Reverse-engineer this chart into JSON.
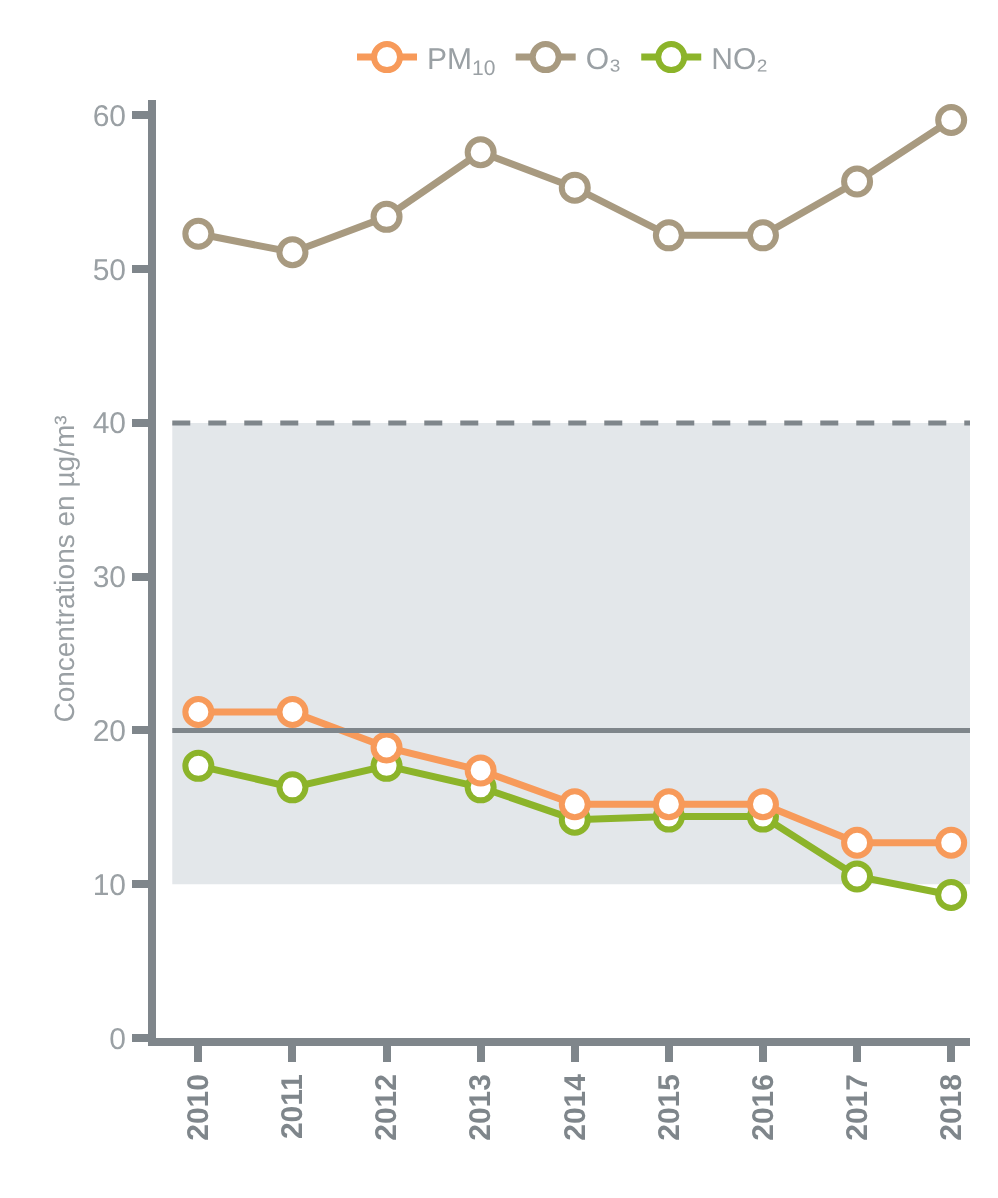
{
  "chart_data": {
    "type": "line",
    "ylabel": "Concentrations en µg/m³",
    "categories": [
      "2010",
      "2011",
      "2012",
      "2013",
      "2014",
      "2015",
      "2016",
      "2017",
      "2018"
    ],
    "series": [
      {
        "name": "PM$_{10}$",
        "color": "#f79a5a",
        "values": [
          21.2,
          21.2,
          18.9,
          17.4,
          15.2,
          15.2,
          15.2,
          12.7,
          12.7
        ]
      },
      {
        "name": "O₃",
        "color": "#a89a80",
        "values": [
          52.3,
          51.1,
          53.4,
          57.6,
          55.3,
          52.2,
          52.2,
          55.7,
          59.7
        ]
      },
      {
        "name": "NO₂",
        "color": "#8cb42a",
        "values": [
          17.7,
          16.3,
          17.7,
          16.3,
          14.2,
          14.4,
          14.4,
          10.5,
          9.3
        ]
      }
    ],
    "ylim": [
      0,
      61
    ],
    "yticks": [
      0,
      10,
      20,
      30,
      40,
      50,
      60
    ],
    "bands": [
      {
        "axis": "y",
        "from": 10,
        "to": 40,
        "color": "#e3e7ea"
      }
    ],
    "ref_lines": [
      {
        "axis": "y",
        "value": 40,
        "color": "#7f868b",
        "line_style": "dashed"
      },
      {
        "axis": "y",
        "value": 20,
        "color": "#7f868b",
        "line_style": "solid"
      }
    ],
    "grid": false,
    "legend": "top",
    "marker": "circle",
    "line_style": "solid"
  }
}
